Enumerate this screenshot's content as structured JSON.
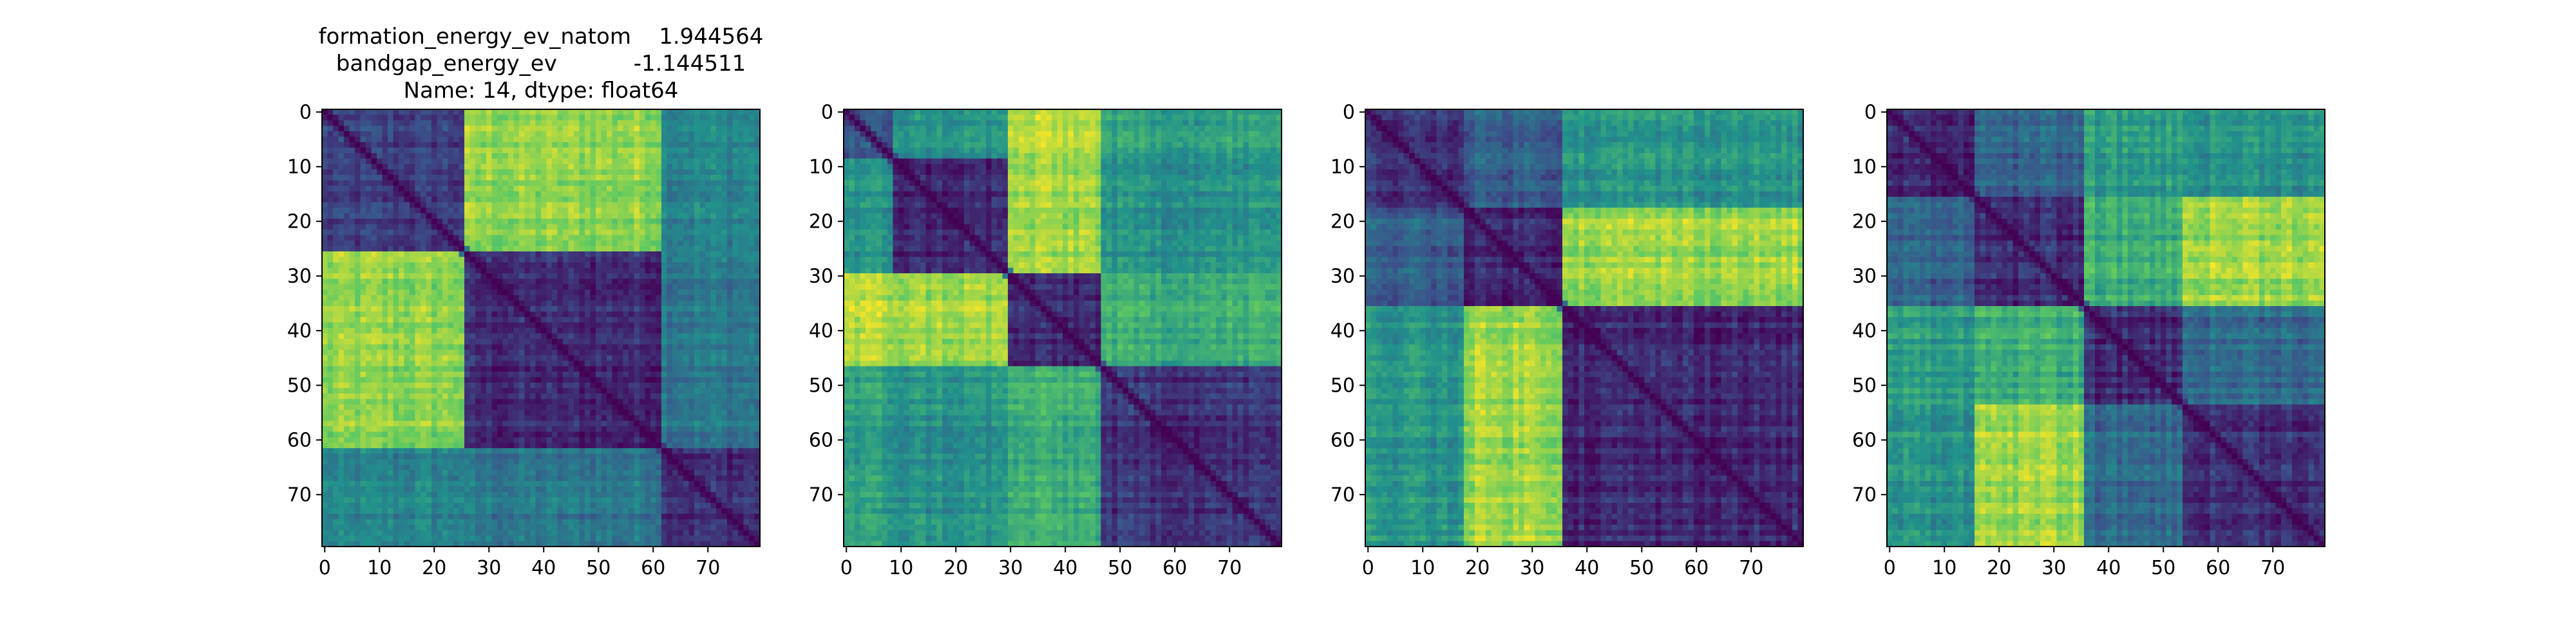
{
  "figure": {
    "background": "#ffffff",
    "colormap": "viridis",
    "colormap_stops": [
      "#440154",
      "#3b528b",
      "#21918c",
      "#5ec962",
      "#fde725"
    ]
  },
  "chart_data": [
    {
      "type": "heatmap",
      "title_lines": [
        "formation_energy_ev_natom    1.944564",
        "bandgap_energy_ev           -1.144511",
        "Name: 14, dtype: float64"
      ],
      "size": 80,
      "xticks": [
        0,
        10,
        20,
        30,
        40,
        50,
        60,
        70
      ],
      "yticks": [
        0,
        10,
        20,
        30,
        40,
        50,
        60,
        70
      ],
      "block_boundaries": [
        0,
        26,
        62,
        80
      ],
      "block_matrix": [
        [
          0.18,
          0.82,
          0.45
        ],
        [
          0.82,
          0.12,
          0.4
        ],
        [
          0.45,
          0.4,
          0.15
        ]
      ]
    },
    {
      "type": "heatmap",
      "title_lines": [],
      "size": 80,
      "xticks": [
        0,
        10,
        20,
        30,
        40,
        50,
        60,
        70
      ],
      "yticks": [
        0,
        10,
        20,
        30,
        40,
        50,
        60,
        70
      ],
      "block_boundaries": [
        0,
        9,
        30,
        47,
        80
      ],
      "block_matrix": [
        [
          0.25,
          0.5,
          0.88,
          0.55
        ],
        [
          0.5,
          0.12,
          0.85,
          0.5
        ],
        [
          0.88,
          0.85,
          0.12,
          0.62
        ],
        [
          0.55,
          0.5,
          0.62,
          0.15
        ]
      ]
    },
    {
      "type": "heatmap",
      "title_lines": [],
      "size": 80,
      "xticks": [
        0,
        10,
        20,
        30,
        40,
        50,
        60,
        70
      ],
      "yticks": [
        0,
        10,
        20,
        30,
        40,
        50,
        60,
        70
      ],
      "block_boundaries": [
        0,
        18,
        36,
        80
      ],
      "block_matrix": [
        [
          0.15,
          0.3,
          0.52
        ],
        [
          0.3,
          0.12,
          0.85
        ],
        [
          0.52,
          0.85,
          0.12
        ]
      ]
    },
    {
      "type": "heatmap",
      "title_lines": [],
      "size": 80,
      "xticks": [
        0,
        10,
        20,
        30,
        40,
        50,
        60,
        70
      ],
      "yticks": [
        0,
        10,
        20,
        30,
        40,
        50,
        60,
        70
      ],
      "block_boundaries": [
        0,
        16,
        36,
        54,
        80
      ],
      "block_matrix": [
        [
          0.12,
          0.32,
          0.55,
          0.52
        ],
        [
          0.32,
          0.12,
          0.62,
          0.85
        ],
        [
          0.55,
          0.62,
          0.12,
          0.35
        ],
        [
          0.52,
          0.85,
          0.35,
          0.15
        ]
      ]
    }
  ]
}
